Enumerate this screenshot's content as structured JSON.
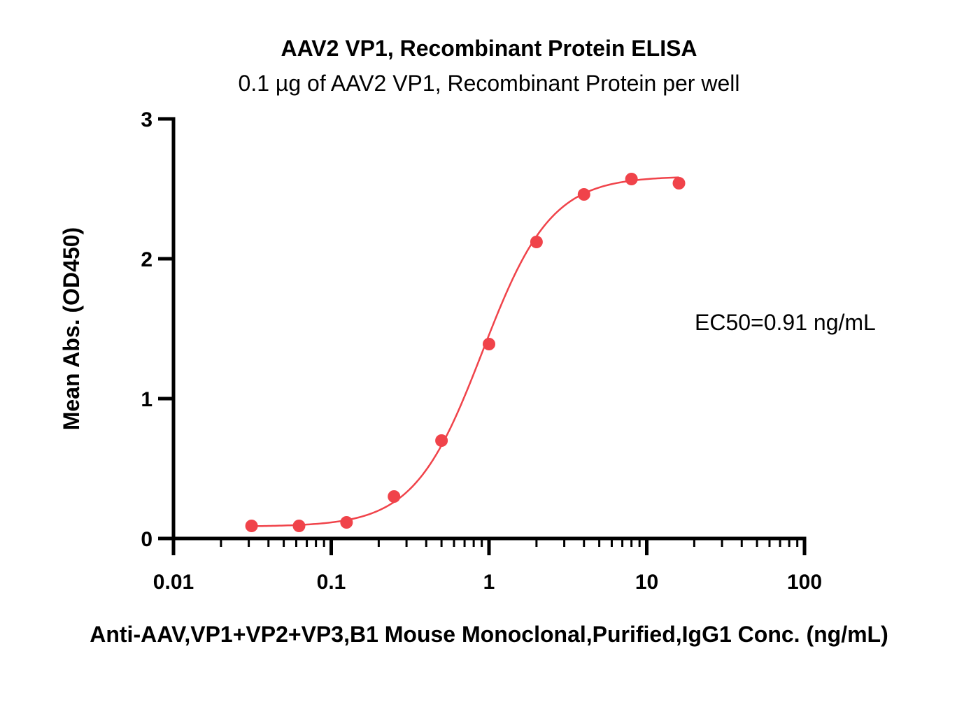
{
  "chart_data": {
    "type": "scatter",
    "title": "AAV2 VP1, Recombinant Protein ELISA",
    "subtitle": "0.1 µg of AAV2 VP1, Recombinant Protein per well",
    "xlabel": "Anti-AAV,VP1+VP2+VP3,B1 Mouse Monoclonal,Purified,IgG1 Conc. (ng/mL)",
    "ylabel": "Mean Abs. (OD450)",
    "x_scale": "log",
    "xlim": [
      0.01,
      100
    ],
    "ylim": [
      0,
      3
    ],
    "x_ticks": [
      0.01,
      0.1,
      1,
      10,
      100
    ],
    "x_tick_labels": [
      "0.01",
      "0.1",
      "1",
      "10",
      "100"
    ],
    "y_ticks": [
      0,
      1,
      2,
      3
    ],
    "y_tick_labels": [
      "0",
      "1",
      "2",
      "3"
    ],
    "grid": false,
    "annotation": "EC50=0.91 ng/mL",
    "series_color": "#f0434a",
    "points": [
      {
        "x": 0.03125,
        "y": 0.09
      },
      {
        "x": 0.0625,
        "y": 0.09
      },
      {
        "x": 0.125,
        "y": 0.115
      },
      {
        "x": 0.25,
        "y": 0.3
      },
      {
        "x": 0.5,
        "y": 0.7
      },
      {
        "x": 1.0,
        "y": 1.39
      },
      {
        "x": 2.0,
        "y": 2.12
      },
      {
        "x": 4.0,
        "y": 2.46
      },
      {
        "x": 8.0,
        "y": 2.57
      },
      {
        "x": 16.0,
        "y": 2.54
      }
    ],
    "fit": {
      "model": "4PL",
      "bottom": 0.085,
      "top": 2.59,
      "ec50": 0.91,
      "hill": 2.0,
      "x_range": [
        0.03125,
        16.0
      ]
    }
  }
}
